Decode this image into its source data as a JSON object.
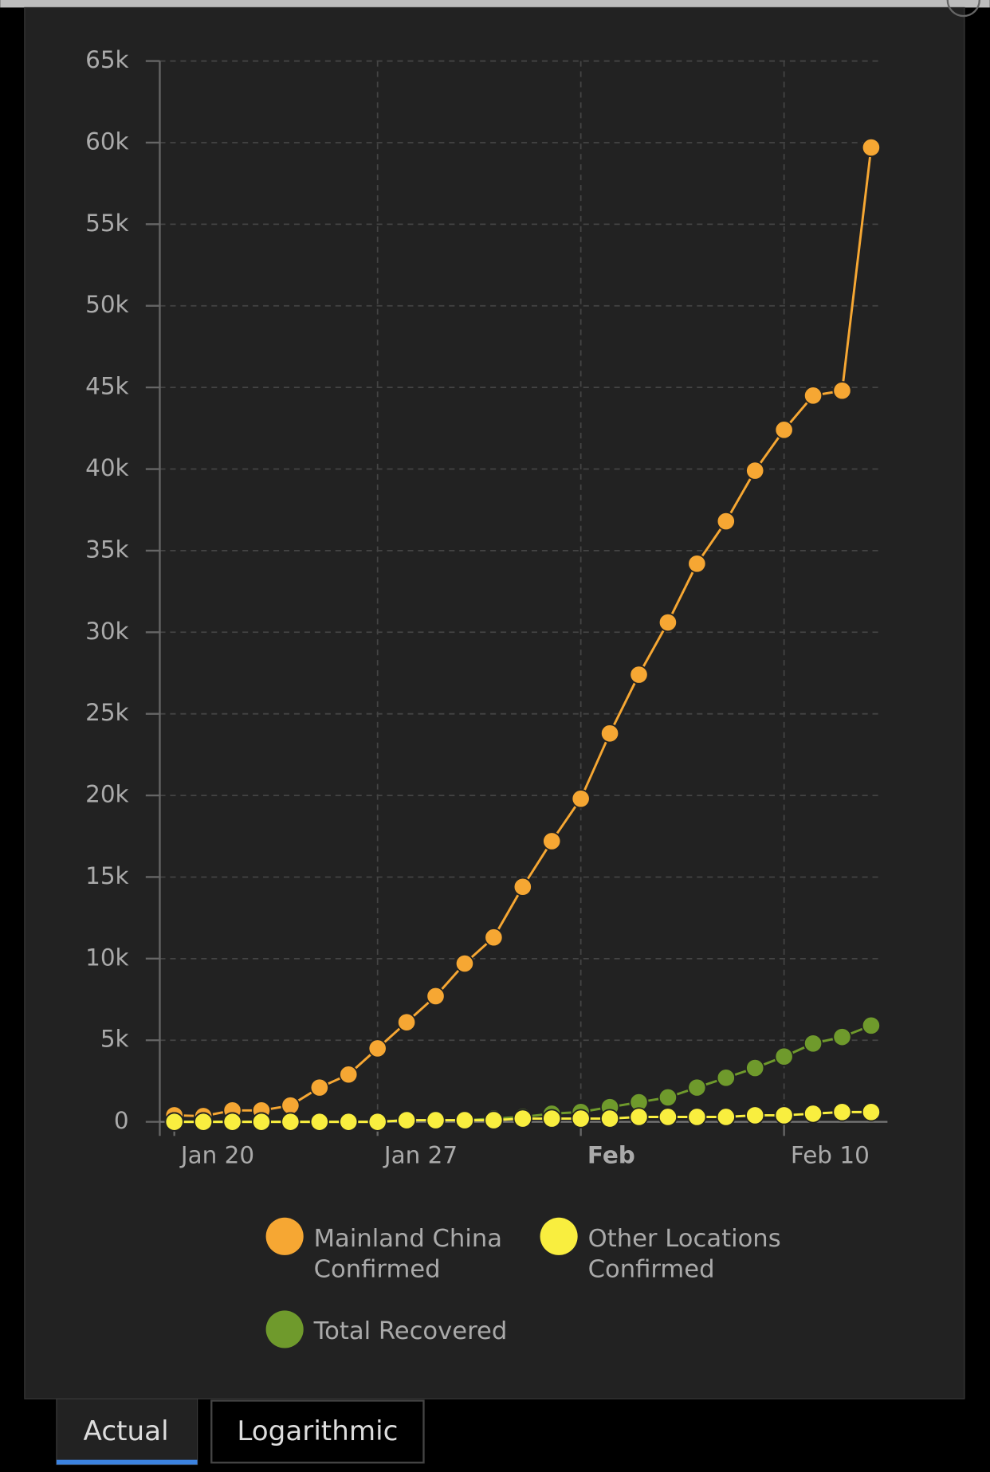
{
  "chart_data": {
    "type": "line",
    "x": [
      20,
      21,
      22,
      23,
      24,
      25,
      26,
      27,
      28,
      29,
      30,
      31,
      32,
      33,
      34,
      35,
      36,
      37,
      38,
      39,
      40,
      41,
      42,
      43,
      44
    ],
    "xlim": [
      19.5,
      44.4
    ],
    "xticks": [
      {
        "value": 20,
        "label": "Jan 20"
      },
      {
        "value": 27,
        "label": "Jan 27"
      },
      {
        "value": 34,
        "label": "Feb"
      },
      {
        "value": 41,
        "label": "Feb 10"
      }
    ],
    "ylim": [
      0,
      65000
    ],
    "yticks": [
      {
        "value": 0,
        "label": "0"
      },
      {
        "value": 5000,
        "label": "5k"
      },
      {
        "value": 10000,
        "label": "10k"
      },
      {
        "value": 15000,
        "label": "15k"
      },
      {
        "value": 20000,
        "label": "20k"
      },
      {
        "value": 25000,
        "label": "25k"
      },
      {
        "value": 30000,
        "label": "30k"
      },
      {
        "value": 35000,
        "label": "35k"
      },
      {
        "value": 40000,
        "label": "40k"
      },
      {
        "value": 45000,
        "label": "45k"
      },
      {
        "value": 50000,
        "label": "50k"
      },
      {
        "value": 55000,
        "label": "55k"
      },
      {
        "value": 60000,
        "label": "60k"
      },
      {
        "value": 65000,
        "label": "65k"
      }
    ],
    "grid": true,
    "series": [
      {
        "name": "Mainland China Confirmed",
        "color": "#f6a733",
        "values": [
          400,
          350,
          700,
          700,
          1000,
          2100,
          2900,
          4500,
          6100,
          7700,
          9700,
          11300,
          14400,
          17200,
          19800,
          23800,
          27400,
          30600,
          34200,
          36800,
          39900,
          42400,
          44500,
          44800,
          59700
        ]
      },
      {
        "name": "Other Locations Confirmed",
        "color": "#f9ee3f",
        "values": [
          0,
          0,
          0,
          0,
          0,
          0,
          0,
          0,
          100,
          100,
          100,
          100,
          200,
          200,
          200,
          200,
          300,
          300,
          300,
          300,
          400,
          400,
          500,
          600,
          600
        ]
      },
      {
        "name": "Total Recovered",
        "color": "#6f9a2c",
        "values": [
          0,
          0,
          0,
          0,
          0,
          0,
          0,
          0,
          100,
          100,
          100,
          200,
          300,
          500,
          600,
          900,
          1200,
          1500,
          2100,
          2700,
          3300,
          4000,
          4800,
          5200,
          5900
        ]
      }
    ]
  },
  "buttons": [
    "Actual",
    "Logarithmic"
  ]
}
